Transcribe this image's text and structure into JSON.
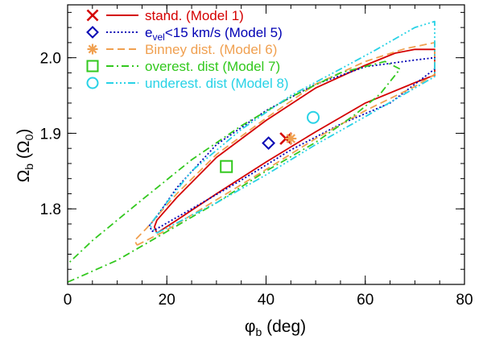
{
  "chart_data": {
    "type": "line",
    "title": "",
    "xlabel": {
      "main": "φ",
      "sub": "b",
      "rest": " (deg)"
    },
    "ylabel": {
      "main": "Ω",
      "sub": "b",
      "mid": " (Ω",
      "sub2": "0",
      "end": ")"
    },
    "xlim": [
      0,
      80
    ],
    "ylim": [
      1.7,
      2.07
    ],
    "xticks": [
      0,
      20,
      40,
      60,
      80
    ],
    "xtick_labels": [
      "0",
      "20",
      "40",
      "60",
      "80"
    ],
    "yticks": [
      1.8,
      1.9,
      2.0
    ],
    "ytick_labels": [
      "1.8",
      "1.9",
      "2.0"
    ],
    "x_minor_step": 5,
    "y_minor_step": 0.02,
    "series": [
      {
        "name": "stand. (Model 1)",
        "legend_parts": [
          {
            "t": "stand. (Model 1)"
          }
        ],
        "color": "#d40000",
        "dash": "solid",
        "marker": "x",
        "point": [
          44.0,
          1.893
        ],
        "contour": [
          [
            18,
            1.768
          ],
          [
            22,
            1.785
          ],
          [
            30,
            1.82
          ],
          [
            40,
            1.862
          ],
          [
            50,
            1.902
          ],
          [
            60,
            1.94
          ],
          [
            70,
            1.967
          ],
          [
            74,
            1.977
          ],
          [
            74,
            2.011
          ],
          [
            70,
            2.011
          ],
          [
            66,
            2.006
          ],
          [
            60,
            1.99
          ],
          [
            50,
            1.96
          ],
          [
            40,
            1.917
          ],
          [
            30,
            1.868
          ],
          [
            22,
            1.815
          ],
          [
            18,
            1.785
          ],
          [
            17.5,
            1.776
          ],
          [
            18,
            1.768
          ]
        ]
      },
      {
        "name": "e_vel<15 km/s (Model 5)",
        "legend_parts": [
          {
            "t": "e"
          },
          {
            "t": "vel",
            "sub": true
          },
          {
            "t": "<15 km/s (Model 5)"
          }
        ],
        "color": "#0000b4",
        "dash": "dotted",
        "marker": "diamond",
        "point": [
          40.5,
          1.887
        ],
        "contour": [
          [
            17,
            1.77
          ],
          [
            25,
            1.8
          ],
          [
            35,
            1.838
          ],
          [
            45,
            1.878
          ],
          [
            55,
            1.912
          ],
          [
            65,
            1.94
          ],
          [
            74,
            1.985
          ],
          [
            74,
            2.0
          ],
          [
            70,
            1.997
          ],
          [
            60,
            1.988
          ],
          [
            50,
            1.965
          ],
          [
            40,
            1.93
          ],
          [
            30,
            1.885
          ],
          [
            22,
            1.828
          ],
          [
            18,
            1.79
          ],
          [
            16.5,
            1.778
          ],
          [
            17,
            1.77
          ]
        ]
      },
      {
        "name": "Binney dist. (Model 6)",
        "legend_parts": [
          {
            "t": "Binney dist. (Model 6)"
          }
        ],
        "color": "#f0a050",
        "dash": "dashed",
        "marker": "asterisk",
        "point": [
          45.0,
          1.893
        ],
        "contour": [
          [
            14,
            1.752
          ],
          [
            20,
            1.772
          ],
          [
            30,
            1.812
          ],
          [
            40,
            1.852
          ],
          [
            50,
            1.893
          ],
          [
            60,
            1.93
          ],
          [
            70,
            1.962
          ],
          [
            74,
            1.978
          ],
          [
            74,
            2.02
          ],
          [
            68,
            2.012
          ],
          [
            60,
            1.995
          ],
          [
            50,
            1.965
          ],
          [
            40,
            1.92
          ],
          [
            30,
            1.872
          ],
          [
            22,
            1.82
          ],
          [
            16,
            1.775
          ],
          [
            13.5,
            1.758
          ],
          [
            14,
            1.752
          ]
        ]
      },
      {
        "name": "overest. dist (Model 7)",
        "legend_parts": [
          {
            "t": "overest. dist (Model 7)"
          }
        ],
        "color": "#32c81e",
        "dash": "dashdot",
        "marker": "square",
        "point": [
          32.0,
          1.856
        ],
        "contour": [
          [
            0,
            1.703
          ],
          [
            10,
            1.732
          ],
          [
            20,
            1.77
          ],
          [
            30,
            1.808
          ],
          [
            40,
            1.85
          ],
          [
            50,
            1.888
          ],
          [
            58,
            1.925
          ],
          [
            63,
            1.952
          ],
          [
            67,
            1.985
          ],
          [
            64,
            1.995
          ],
          [
            55,
            1.98
          ],
          [
            45,
            1.948
          ],
          [
            35,
            1.91
          ],
          [
            25,
            1.865
          ],
          [
            15,
            1.812
          ],
          [
            5,
            1.758
          ],
          [
            0,
            1.727
          ]
        ]
      },
      {
        "name": "underest. dist (Model 8)",
        "legend_parts": [
          {
            "t": "underest. dist (Model 8)"
          }
        ],
        "color": "#28d2e6",
        "dash": "dashdotdotdot",
        "marker": "circle",
        "point": [
          49.5,
          1.921
        ],
        "contour": [
          [
            18,
            1.768
          ],
          [
            30,
            1.808
          ],
          [
            40,
            1.845
          ],
          [
            50,
            1.885
          ],
          [
            60,
            1.922
          ],
          [
            70,
            1.96
          ],
          [
            74,
            1.975
          ],
          [
            74,
            2.048
          ],
          [
            70,
            2.04
          ],
          [
            62,
            2.01
          ],
          [
            55,
            1.985
          ],
          [
            45,
            1.95
          ],
          [
            35,
            1.905
          ],
          [
            25,
            1.85
          ],
          [
            19,
            1.8
          ],
          [
            16.5,
            1.778
          ],
          [
            18,
            1.768
          ]
        ]
      }
    ]
  }
}
